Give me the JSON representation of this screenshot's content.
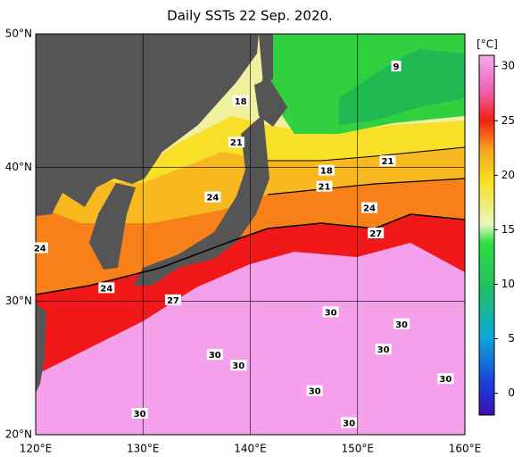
{
  "chart_data": {
    "type": "map",
    "title": "Daily SSTs 22 Sep. 2020.",
    "xlim": [
      120,
      160
    ],
    "ylim": [
      20,
      50
    ],
    "xticks": [
      {
        "value": 120,
        "label": "120°E"
      },
      {
        "value": 130,
        "label": "130°E"
      },
      {
        "value": 140,
        "label": "140°E"
      },
      {
        "value": 150,
        "label": "150°E"
      },
      {
        "value": 160,
        "label": "160°E"
      }
    ],
    "yticks": [
      {
        "value": 20,
        "label": "20°N"
      },
      {
        "value": 30,
        "label": "30°N"
      },
      {
        "value": 40,
        "label": "40°N"
      },
      {
        "value": 50,
        "label": "50°N"
      }
    ],
    "grid": true,
    "colorbar": {
      "label": "[°C]",
      "clim": [
        -2,
        31
      ],
      "ticks": [
        0,
        5,
        10,
        15,
        20,
        25,
        30
      ]
    },
    "contour_labels": [
      {
        "value": 9,
        "lon": 153.6,
        "lat": 47.6
      },
      {
        "value": 18,
        "lon": 139.1,
        "lat": 45.0
      },
      {
        "value": 21,
        "lon": 138.7,
        "lat": 41.9
      },
      {
        "value": 18,
        "lon": 147.1,
        "lat": 39.8
      },
      {
        "value": 21,
        "lon": 152.8,
        "lat": 40.5
      },
      {
        "value": 21,
        "lon": 146.9,
        "lat": 38.6
      },
      {
        "value": 24,
        "lon": 136.5,
        "lat": 37.8
      },
      {
        "value": 24,
        "lon": 151.1,
        "lat": 37.0
      },
      {
        "value": 27,
        "lon": 151.7,
        "lat": 35.1
      },
      {
        "value": 24,
        "lon": 120.4,
        "lat": 34.0
      },
      {
        "value": 24,
        "lon": 126.6,
        "lat": 31.0
      },
      {
        "value": 27,
        "lon": 132.8,
        "lat": 30.1
      },
      {
        "value": 30,
        "lon": 147.5,
        "lat": 29.2
      },
      {
        "value": 30,
        "lon": 154.1,
        "lat": 28.3
      },
      {
        "value": 30,
        "lon": 152.4,
        "lat": 26.4
      },
      {
        "value": 30,
        "lon": 136.7,
        "lat": 26.0
      },
      {
        "value": 30,
        "lon": 138.9,
        "lat": 25.2
      },
      {
        "value": 30,
        "lon": 158.2,
        "lat": 24.2
      },
      {
        "value": 30,
        "lon": 146.0,
        "lat": 23.3
      },
      {
        "value": 30,
        "lon": 129.7,
        "lat": 21.6
      },
      {
        "value": 30,
        "lon": 149.2,
        "lat": 20.9
      }
    ]
  }
}
